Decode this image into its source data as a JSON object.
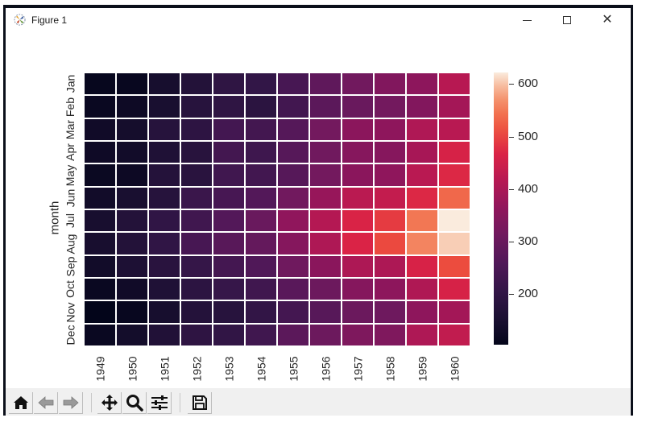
{
  "window": {
    "title": "Figure 1",
    "controls": {
      "minimize": "minimize",
      "maximize": "maximize",
      "close": "close"
    }
  },
  "toolbar": {
    "buttons": [
      {
        "name": "home-button",
        "icon": "home-icon",
        "label": "Home"
      },
      {
        "name": "back-button",
        "icon": "arrow-left-icon",
        "label": "Back"
      },
      {
        "name": "forward-button",
        "icon": "arrow-right-icon",
        "label": "Forward"
      },
      {
        "name": "pan-button",
        "icon": "move-icon",
        "label": "Pan"
      },
      {
        "name": "zoom-button",
        "icon": "magnifier-icon",
        "label": "Zoom"
      },
      {
        "name": "configure-subplots-button",
        "icon": "sliders-icon",
        "label": "Configure subplots"
      },
      {
        "name": "save-button",
        "icon": "floppy-disk-icon",
        "label": "Save"
      }
    ]
  },
  "chart_data": {
    "type": "heatmap",
    "title": "",
    "xlabel": "",
    "ylabel": "month",
    "x": [
      "1949",
      "1950",
      "1951",
      "1952",
      "1953",
      "1954",
      "1955",
      "1956",
      "1957",
      "1958",
      "1959",
      "1960"
    ],
    "y": [
      "Jan",
      "Feb",
      "Mar",
      "Apr",
      "May",
      "Jun",
      "Jul",
      "Aug",
      "Sep",
      "Oct",
      "Nov",
      "Dec"
    ],
    "values": [
      [
        112,
        115,
        145,
        171,
        196,
        204,
        242,
        284,
        315,
        340,
        360,
        417
      ],
      [
        118,
        126,
        150,
        180,
        196,
        188,
        233,
        277,
        301,
        318,
        342,
        391
      ],
      [
        132,
        141,
        178,
        193,
        236,
        235,
        267,
        317,
        356,
        362,
        406,
        419
      ],
      [
        129,
        135,
        163,
        181,
        235,
        227,
        269,
        313,
        348,
        348,
        396,
        461
      ],
      [
        121,
        125,
        172,
        183,
        229,
        234,
        270,
        318,
        355,
        363,
        420,
        472
      ],
      [
        135,
        149,
        178,
        218,
        243,
        264,
        315,
        374,
        422,
        435,
        472,
        535
      ],
      [
        148,
        170,
        199,
        230,
        264,
        302,
        364,
        413,
        465,
        491,
        548,
        622
      ],
      [
        148,
        170,
        199,
        242,
        272,
        293,
        347,
        405,
        467,
        505,
        559,
        606
      ],
      [
        136,
        158,
        184,
        209,
        237,
        259,
        312,
        355,
        404,
        404,
        463,
        508
      ],
      [
        119,
        133,
        162,
        191,
        211,
        229,
        274,
        306,
        347,
        359,
        407,
        461
      ],
      [
        104,
        114,
        146,
        172,
        180,
        203,
        237,
        271,
        305,
        310,
        362,
        390
      ],
      [
        118,
        140,
        166,
        194,
        201,
        229,
        278,
        306,
        336,
        337,
        405,
        432
      ]
    ],
    "colormap": "rocket",
    "vmin": 104,
    "vmax": 622,
    "colorbar": {
      "ticks": [
        200,
        300,
        400,
        500,
        600
      ]
    },
    "linewidths": "white gaps between cells"
  }
}
